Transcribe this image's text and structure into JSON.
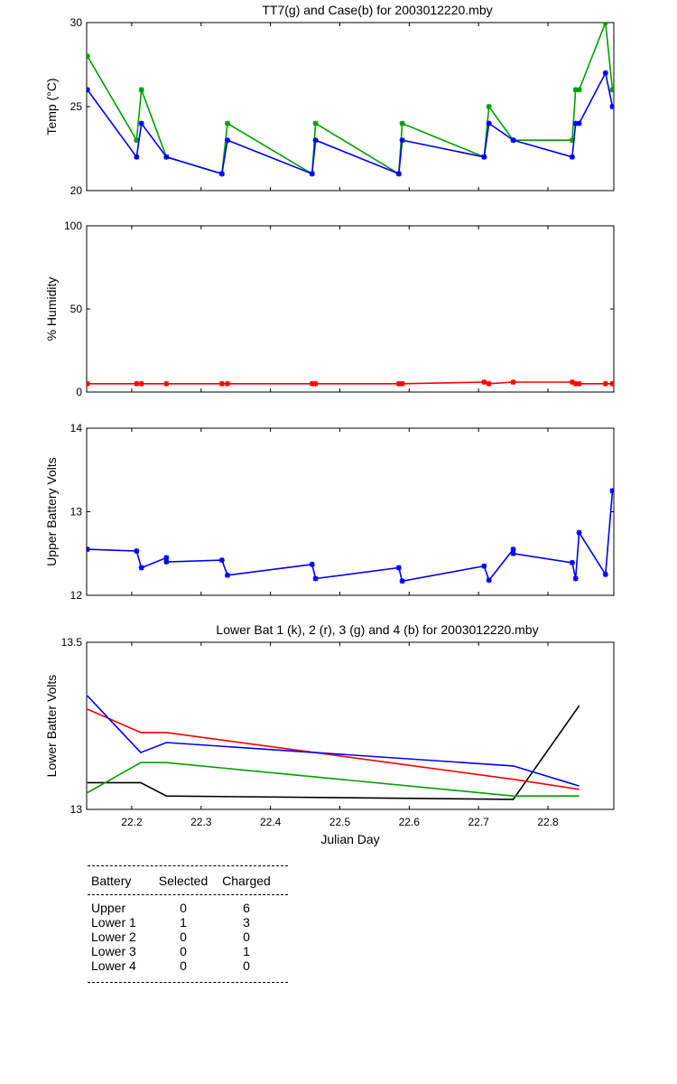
{
  "chart_data": [
    {
      "id": "temp",
      "type": "line",
      "title": "TT7(g) and Case(b) for 2003012220.mby",
      "xlabel": "",
      "ylabel": "Temp  (°C)",
      "xlim": [
        22.135,
        22.895
      ],
      "ylim": [
        20,
        30
      ],
      "yticks": [
        "20",
        "25",
        "30"
      ],
      "series": [
        {
          "color": "#00a000",
          "marker": "*",
          "x": [
            22.136,
            22.207,
            22.214,
            22.25,
            22.33,
            22.338,
            22.46,
            22.465,
            22.585,
            22.59,
            22.708,
            22.715,
            22.75,
            22.835,
            22.84,
            22.845,
            22.883,
            22.893
          ],
          "y": [
            28,
            23,
            26,
            22,
            21,
            24,
            21,
            24,
            21,
            24,
            22,
            25,
            23,
            23,
            26,
            26,
            30,
            26
          ]
        },
        {
          "color": "#0000ff",
          "marker": "*",
          "x": [
            22.136,
            22.207,
            22.214,
            22.25,
            22.33,
            22.338,
            22.46,
            22.465,
            22.585,
            22.59,
            22.708,
            22.715,
            22.75,
            22.835,
            22.84,
            22.845,
            22.883,
            22.893
          ],
          "y": [
            26,
            22,
            24,
            22,
            21,
            23,
            21,
            23,
            21,
            23,
            22,
            24,
            23,
            22,
            24,
            24,
            27,
            25
          ]
        }
      ]
    },
    {
      "id": "humidity",
      "type": "line",
      "title": "",
      "xlabel": "",
      "ylabel": "% Humidity",
      "xlim": [
        22.135,
        22.895
      ],
      "ylim": [
        0,
        100
      ],
      "yticks": [
        "0",
        "50",
        "100"
      ],
      "series": [
        {
          "color": "#ff0000",
          "marker": "*",
          "x": [
            22.136,
            22.207,
            22.214,
            22.25,
            22.33,
            22.338,
            22.46,
            22.465,
            22.585,
            22.59,
            22.708,
            22.715,
            22.75,
            22.835,
            22.84,
            22.845,
            22.883,
            22.893
          ],
          "y": [
            5,
            5,
            5,
            5,
            5,
            5,
            5,
            5,
            5,
            5,
            6,
            5,
            6,
            6,
            5,
            5,
            5,
            5
          ]
        }
      ]
    },
    {
      "id": "upper-battery",
      "type": "line",
      "title": "",
      "xlabel": "",
      "ylabel": "Upper Battery Volts",
      "xlim": [
        22.135,
        22.895
      ],
      "ylim": [
        12,
        14
      ],
      "yticks": [
        "12",
        "13",
        "14"
      ],
      "series": [
        {
          "color": "#0000ff",
          "marker": "*",
          "x": [
            22.136,
            22.207,
            22.214,
            22.25,
            22.25,
            22.33,
            22.338,
            22.46,
            22.465,
            22.585,
            22.59,
            22.708,
            22.715,
            22.75,
            22.75,
            22.835,
            22.84,
            22.845,
            22.883,
            22.893
          ],
          "y": [
            12.55,
            12.53,
            12.33,
            12.45,
            12.4,
            12.42,
            12.24,
            12.37,
            12.2,
            12.33,
            12.17,
            12.35,
            12.18,
            12.55,
            12.5,
            12.39,
            12.2,
            12.75,
            12.25,
            13.25
          ]
        }
      ]
    },
    {
      "id": "lower-battery",
      "type": "line",
      "title": "Lower Bat 1 (k), 2 (r), 3 (g) and 4 (b) for 2003012220.mby",
      "xlabel": "Julian Day",
      "ylabel": "Lower Batter Volts",
      "xlim": [
        22.135,
        22.895
      ],
      "ylim": [
        13,
        13.5
      ],
      "yticks": [
        "13",
        "13.5"
      ],
      "xticks": [
        "22.2",
        "22.3",
        "22.4",
        "22.5",
        "22.6",
        "22.7",
        "22.8"
      ],
      "series": [
        {
          "color": "#000000",
          "x": [
            22.136,
            22.213,
            22.25,
            22.75,
            22.845
          ],
          "y": [
            13.08,
            13.08,
            13.04,
            13.03,
            13.31
          ]
        },
        {
          "color": "#ff0000",
          "x": [
            22.136,
            22.213,
            22.25,
            22.75,
            22.845
          ],
          "y": [
            13.3,
            13.23,
            13.23,
            13.09,
            13.06
          ]
        },
        {
          "color": "#00a000",
          "x": [
            22.136,
            22.213,
            22.25,
            22.75,
            22.845
          ],
          "y": [
            13.05,
            13.14,
            13.14,
            13.04,
            13.04
          ]
        },
        {
          "color": "#0000ff",
          "x": [
            22.136,
            22.213,
            22.25,
            22.75,
            22.845
          ],
          "y": [
            13.34,
            13.17,
            13.2,
            13.13,
            13.07
          ]
        }
      ]
    }
  ],
  "battery_table": {
    "headers": [
      "Battery",
      "Selected",
      "Charged"
    ],
    "rows": [
      [
        "Upper",
        "0",
        "6"
      ],
      [
        "Lower 1",
        "1",
        "3"
      ],
      [
        "Lower 2",
        "0",
        "0"
      ],
      [
        "Lower 3",
        "0",
        "1"
      ],
      [
        "Lower 4",
        "0",
        "0"
      ]
    ]
  }
}
